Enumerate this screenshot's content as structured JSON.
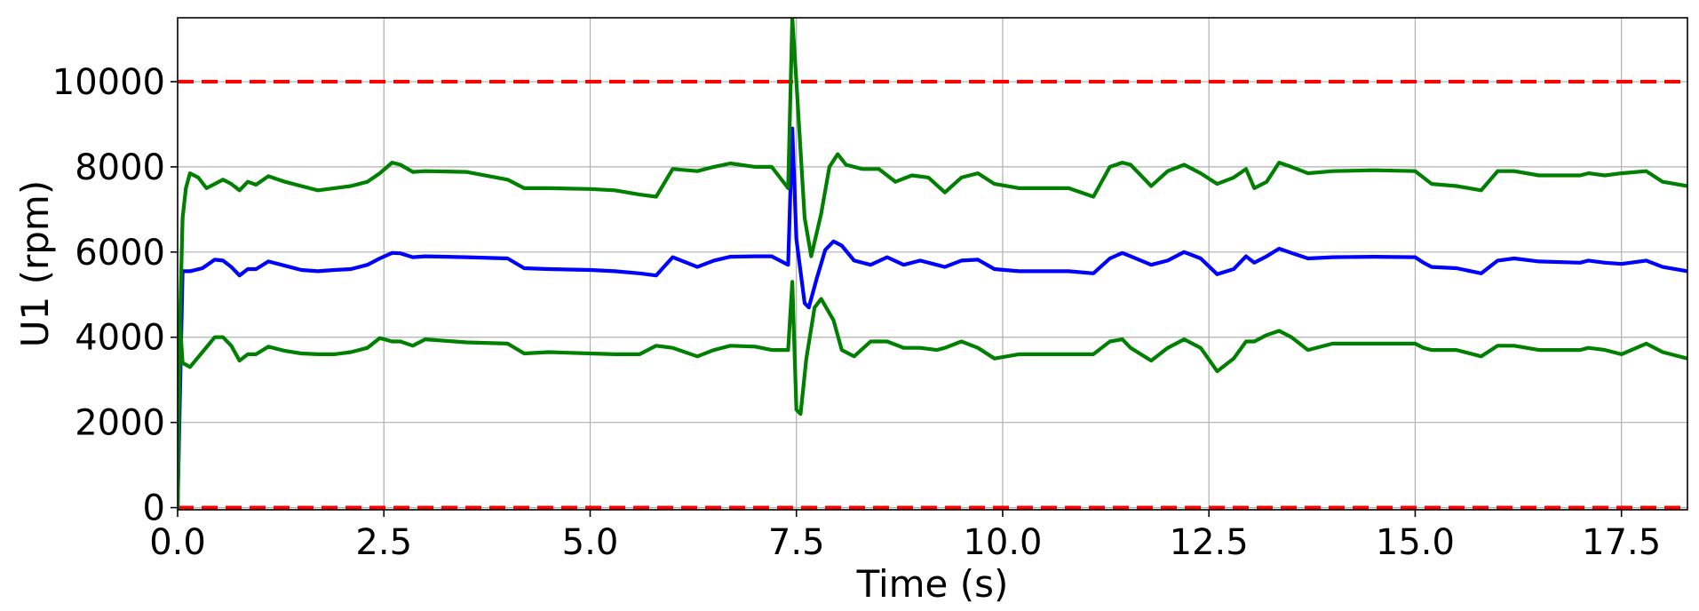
{
  "chart_data": {
    "type": "line",
    "title": "",
    "xlabel": "Time (s)",
    "ylabel": "U1 (rpm)",
    "xlim": [
      0,
      18.3
    ],
    "ylim": [
      -50,
      11500
    ],
    "grid": true,
    "legend": "none",
    "x_ticks": [
      "0.0",
      "2.5",
      "5.0",
      "7.5",
      "10.0",
      "12.5",
      "15.0",
      "17.5"
    ],
    "x_tick_values": [
      0,
      2.5,
      5,
      7.5,
      10,
      12.5,
      15,
      17.5
    ],
    "y_ticks": [
      "0",
      "2000",
      "4000",
      "6000",
      "8000",
      "10000"
    ],
    "y_tick_values": [
      0,
      2000,
      4000,
      6000,
      8000,
      10000
    ],
    "reference_lines": [
      {
        "y": 10000,
        "color": "#ff0000",
        "style": "dashed"
      },
      {
        "y": 0,
        "color": "#ff0000",
        "style": "dashed"
      }
    ],
    "series": [
      {
        "color": "#0000ff",
        "points": [
          [
            0,
            0
          ],
          [
            0.03,
            2800
          ],
          [
            0.06,
            5550
          ],
          [
            0.15,
            5550
          ],
          [
            0.3,
            5620
          ],
          [
            0.45,
            5820
          ],
          [
            0.55,
            5800
          ],
          [
            0.65,
            5650
          ],
          [
            0.75,
            5450
          ],
          [
            0.85,
            5600
          ],
          [
            0.95,
            5600
          ],
          [
            1.1,
            5780
          ],
          [
            1.3,
            5680
          ],
          [
            1.5,
            5580
          ],
          [
            1.7,
            5550
          ],
          [
            1.9,
            5580
          ],
          [
            2.1,
            5600
          ],
          [
            2.3,
            5700
          ],
          [
            2.45,
            5850
          ],
          [
            2.6,
            5980
          ],
          [
            2.7,
            5970
          ],
          [
            2.85,
            5880
          ],
          [
            3.0,
            5900
          ],
          [
            3.5,
            5880
          ],
          [
            4.0,
            5850
          ],
          [
            4.2,
            5620
          ],
          [
            4.5,
            5600
          ],
          [
            5.0,
            5580
          ],
          [
            5.3,
            5550
          ],
          [
            5.6,
            5500
          ],
          [
            5.8,
            5450
          ],
          [
            6.0,
            5880
          ],
          [
            6.3,
            5650
          ],
          [
            6.5,
            5800
          ],
          [
            6.7,
            5890
          ],
          [
            7.0,
            5900
          ],
          [
            7.2,
            5900
          ],
          [
            7.4,
            5700
          ],
          [
            7.45,
            8900
          ],
          [
            7.5,
            6300
          ],
          [
            7.6,
            4800
          ],
          [
            7.65,
            4700
          ],
          [
            7.75,
            5400
          ],
          [
            7.85,
            6050
          ],
          [
            7.95,
            6250
          ],
          [
            8.05,
            6150
          ],
          [
            8.2,
            5800
          ],
          [
            8.4,
            5700
          ],
          [
            8.6,
            5880
          ],
          [
            8.8,
            5700
          ],
          [
            9.0,
            5800
          ],
          [
            9.2,
            5700
          ],
          [
            9.3,
            5650
          ],
          [
            9.5,
            5800
          ],
          [
            9.7,
            5820
          ],
          [
            9.9,
            5600
          ],
          [
            10.2,
            5550
          ],
          [
            10.8,
            5550
          ],
          [
            11.1,
            5500
          ],
          [
            11.3,
            5850
          ],
          [
            11.45,
            5980
          ],
          [
            11.55,
            5900
          ],
          [
            11.8,
            5700
          ],
          [
            12.0,
            5800
          ],
          [
            12.2,
            6000
          ],
          [
            12.4,
            5850
          ],
          [
            12.6,
            5480
          ],
          [
            12.8,
            5600
          ],
          [
            12.95,
            5900
          ],
          [
            13.05,
            5750
          ],
          [
            13.2,
            5900
          ],
          [
            13.35,
            6080
          ],
          [
            13.5,
            5980
          ],
          [
            13.7,
            5850
          ],
          [
            14.0,
            5880
          ],
          [
            14.5,
            5890
          ],
          [
            15.0,
            5880
          ],
          [
            15.1,
            5750
          ],
          [
            15.2,
            5650
          ],
          [
            15.5,
            5620
          ],
          [
            15.8,
            5500
          ],
          [
            16.0,
            5800
          ],
          [
            16.2,
            5850
          ],
          [
            16.5,
            5780
          ],
          [
            17.0,
            5750
          ],
          [
            17.1,
            5800
          ],
          [
            17.3,
            5750
          ],
          [
            17.5,
            5720
          ],
          [
            17.8,
            5800
          ],
          [
            18.0,
            5650
          ],
          [
            18.3,
            5550
          ]
        ]
      },
      {
        "color": "#008000",
        "points": [
          [
            0,
            0
          ],
          [
            0.03,
            4500
          ],
          [
            0.06,
            6800
          ],
          [
            0.1,
            7500
          ],
          [
            0.15,
            7850
          ],
          [
            0.25,
            7750
          ],
          [
            0.35,
            7500
          ],
          [
            0.45,
            7600
          ],
          [
            0.55,
            7700
          ],
          [
            0.65,
            7600
          ],
          [
            0.75,
            7450
          ],
          [
            0.85,
            7650
          ],
          [
            0.95,
            7580
          ],
          [
            1.1,
            7780
          ],
          [
            1.3,
            7650
          ],
          [
            1.5,
            7550
          ],
          [
            1.7,
            7450
          ],
          [
            1.9,
            7500
          ],
          [
            2.1,
            7550
          ],
          [
            2.3,
            7650
          ],
          [
            2.45,
            7850
          ],
          [
            2.6,
            8100
          ],
          [
            2.7,
            8050
          ],
          [
            2.85,
            7880
          ],
          [
            3.0,
            7900
          ],
          [
            3.5,
            7880
          ],
          [
            4.0,
            7700
          ],
          [
            4.2,
            7500
          ],
          [
            4.5,
            7500
          ],
          [
            5.0,
            7480
          ],
          [
            5.3,
            7450
          ],
          [
            5.6,
            7350
          ],
          [
            5.8,
            7300
          ],
          [
            6.0,
            7950
          ],
          [
            6.3,
            7900
          ],
          [
            6.5,
            8000
          ],
          [
            6.7,
            8080
          ],
          [
            7.0,
            8000
          ],
          [
            7.2,
            8000
          ],
          [
            7.4,
            7500
          ],
          [
            7.45,
            11500
          ],
          [
            7.5,
            10000
          ],
          [
            7.6,
            6800
          ],
          [
            7.68,
            5900
          ],
          [
            7.8,
            6900
          ],
          [
            7.9,
            8000
          ],
          [
            8.0,
            8300
          ],
          [
            8.1,
            8050
          ],
          [
            8.3,
            7950
          ],
          [
            8.5,
            7950
          ],
          [
            8.7,
            7650
          ],
          [
            8.9,
            7800
          ],
          [
            9.1,
            7750
          ],
          [
            9.3,
            7400
          ],
          [
            9.5,
            7750
          ],
          [
            9.7,
            7850
          ],
          [
            9.9,
            7600
          ],
          [
            10.2,
            7500
          ],
          [
            10.8,
            7500
          ],
          [
            11.1,
            7300
          ],
          [
            11.3,
            8000
          ],
          [
            11.45,
            8100
          ],
          [
            11.55,
            8050
          ],
          [
            11.8,
            7550
          ],
          [
            12.0,
            7900
          ],
          [
            12.2,
            8050
          ],
          [
            12.4,
            7850
          ],
          [
            12.6,
            7600
          ],
          [
            12.8,
            7750
          ],
          [
            12.95,
            7950
          ],
          [
            13.05,
            7500
          ],
          [
            13.2,
            7650
          ],
          [
            13.35,
            8100
          ],
          [
            13.5,
            8000
          ],
          [
            13.7,
            7850
          ],
          [
            14.0,
            7900
          ],
          [
            14.5,
            7920
          ],
          [
            15.0,
            7900
          ],
          [
            15.1,
            7750
          ],
          [
            15.2,
            7600
          ],
          [
            15.5,
            7550
          ],
          [
            15.8,
            7450
          ],
          [
            16.0,
            7900
          ],
          [
            16.2,
            7900
          ],
          [
            16.5,
            7800
          ],
          [
            17.0,
            7800
          ],
          [
            17.1,
            7850
          ],
          [
            17.3,
            7800
          ],
          [
            17.5,
            7850
          ],
          [
            17.8,
            7900
          ],
          [
            18.0,
            7650
          ],
          [
            18.3,
            7550
          ]
        ]
      },
      {
        "color": "#008000",
        "points": [
          [
            0,
            0
          ],
          [
            0.03,
            4300
          ],
          [
            0.06,
            3400
          ],
          [
            0.15,
            3300
          ],
          [
            0.3,
            3650
          ],
          [
            0.45,
            4000
          ],
          [
            0.55,
            4000
          ],
          [
            0.65,
            3800
          ],
          [
            0.75,
            3450
          ],
          [
            0.85,
            3600
          ],
          [
            0.95,
            3600
          ],
          [
            1.1,
            3780
          ],
          [
            1.3,
            3680
          ],
          [
            1.5,
            3620
          ],
          [
            1.7,
            3600
          ],
          [
            1.9,
            3600
          ],
          [
            2.1,
            3650
          ],
          [
            2.3,
            3750
          ],
          [
            2.45,
            3980
          ],
          [
            2.6,
            3900
          ],
          [
            2.7,
            3900
          ],
          [
            2.85,
            3800
          ],
          [
            3.0,
            3950
          ],
          [
            3.5,
            3880
          ],
          [
            4.0,
            3850
          ],
          [
            4.2,
            3620
          ],
          [
            4.5,
            3650
          ],
          [
            5.0,
            3620
          ],
          [
            5.3,
            3600
          ],
          [
            5.6,
            3600
          ],
          [
            5.8,
            3800
          ],
          [
            6.0,
            3750
          ],
          [
            6.3,
            3550
          ],
          [
            6.5,
            3700
          ],
          [
            6.7,
            3800
          ],
          [
            7.0,
            3780
          ],
          [
            7.2,
            3700
          ],
          [
            7.4,
            3700
          ],
          [
            7.45,
            5300
          ],
          [
            7.5,
            2300
          ],
          [
            7.55,
            2200
          ],
          [
            7.62,
            3500
          ],
          [
            7.72,
            4700
          ],
          [
            7.8,
            4900
          ],
          [
            7.95,
            4400
          ],
          [
            8.05,
            3700
          ],
          [
            8.2,
            3550
          ],
          [
            8.4,
            3900
          ],
          [
            8.6,
            3900
          ],
          [
            8.8,
            3750
          ],
          [
            9.0,
            3750
          ],
          [
            9.2,
            3700
          ],
          [
            9.3,
            3750
          ],
          [
            9.5,
            3900
          ],
          [
            9.7,
            3750
          ],
          [
            9.9,
            3500
          ],
          [
            10.2,
            3600
          ],
          [
            10.8,
            3600
          ],
          [
            11.1,
            3600
          ],
          [
            11.3,
            3900
          ],
          [
            11.45,
            3950
          ],
          [
            11.55,
            3750
          ],
          [
            11.8,
            3450
          ],
          [
            12.0,
            3750
          ],
          [
            12.2,
            3950
          ],
          [
            12.4,
            3750
          ],
          [
            12.6,
            3200
          ],
          [
            12.8,
            3500
          ],
          [
            12.95,
            3900
          ],
          [
            13.05,
            3900
          ],
          [
            13.2,
            4050
          ],
          [
            13.35,
            4150
          ],
          [
            13.5,
            4000
          ],
          [
            13.7,
            3700
          ],
          [
            14.0,
            3850
          ],
          [
            14.5,
            3850
          ],
          [
            15.0,
            3850
          ],
          [
            15.1,
            3750
          ],
          [
            15.2,
            3700
          ],
          [
            15.5,
            3700
          ],
          [
            15.8,
            3550
          ],
          [
            16.0,
            3800
          ],
          [
            16.2,
            3800
          ],
          [
            16.5,
            3700
          ],
          [
            17.0,
            3700
          ],
          [
            17.1,
            3750
          ],
          [
            17.3,
            3700
          ],
          [
            17.5,
            3600
          ],
          [
            17.8,
            3850
          ],
          [
            18.0,
            3650
          ],
          [
            18.3,
            3500
          ]
        ]
      }
    ]
  }
}
